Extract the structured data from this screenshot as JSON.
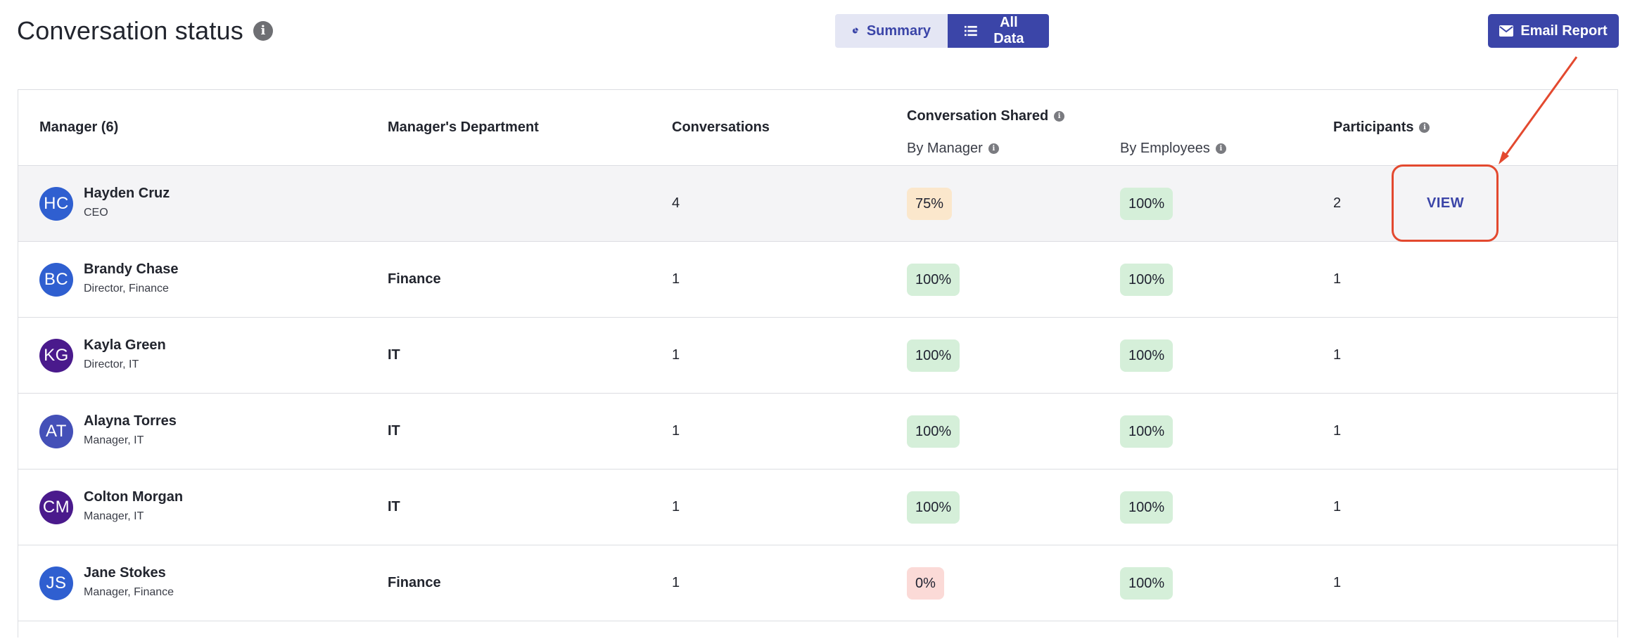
{
  "header": {
    "title": "Conversation status",
    "summary_label": "Summary",
    "all_data_label": "All Data",
    "email_label": "Email Report"
  },
  "table": {
    "columns": {
      "manager": "Manager (6)",
      "department": "Manager's Department",
      "conversations": "Conversations",
      "shared": "Conversation Shared",
      "by_manager": "By Manager",
      "by_employees": "By Employees",
      "participants": "Participants"
    },
    "view_label": "VIEW",
    "rows": [
      {
        "initials": "HC",
        "avatar_color": "#2f5fd0",
        "name": "Hayden Cruz",
        "role": "CEO",
        "department": "",
        "conversations": "4",
        "by_manager": "75%",
        "by_manager_status": "warn",
        "by_employees": "100%",
        "by_employees_status": "good",
        "participants": "2"
      },
      {
        "initials": "BC",
        "avatar_color": "#2f5fd0",
        "name": "Brandy Chase",
        "role": "Director, Finance",
        "department": "Finance",
        "conversations": "1",
        "by_manager": "100%",
        "by_manager_status": "good",
        "by_employees": "100%",
        "by_employees_status": "good",
        "participants": "1"
      },
      {
        "initials": "KG",
        "avatar_color": "#4a1a8c",
        "name": "Kayla Green",
        "role": "Director, IT",
        "department": "IT",
        "conversations": "1",
        "by_manager": "100%",
        "by_manager_status": "good",
        "by_employees": "100%",
        "by_employees_status": "good",
        "participants": "1"
      },
      {
        "initials": "AT",
        "avatar_color": "#4450b8",
        "name": "Alayna Torres",
        "role": "Manager, IT",
        "department": "IT",
        "conversations": "1",
        "by_manager": "100%",
        "by_manager_status": "good",
        "by_employees": "100%",
        "by_employees_status": "good",
        "participants": "1"
      },
      {
        "initials": "CM",
        "avatar_color": "#4a1a8c",
        "name": "Colton Morgan",
        "role": "Manager, IT",
        "department": "IT",
        "conversations": "1",
        "by_manager": "100%",
        "by_manager_status": "good",
        "by_employees": "100%",
        "by_employees_status": "good",
        "participants": "1"
      },
      {
        "initials": "JS",
        "avatar_color": "#2f5fd0",
        "name": "Jane Stokes",
        "role": "Manager, Finance",
        "department": "Finance",
        "conversations": "1",
        "by_manager": "0%",
        "by_manager_status": "bad",
        "by_employees": "100%",
        "by_employees_status": "good",
        "participants": "1"
      }
    ]
  },
  "colors": {
    "accent": "#3b45a8",
    "good": "#d5efd9",
    "warn": "#fbe7cc",
    "bad": "#fbdad7",
    "annotation": "#e3492f"
  }
}
